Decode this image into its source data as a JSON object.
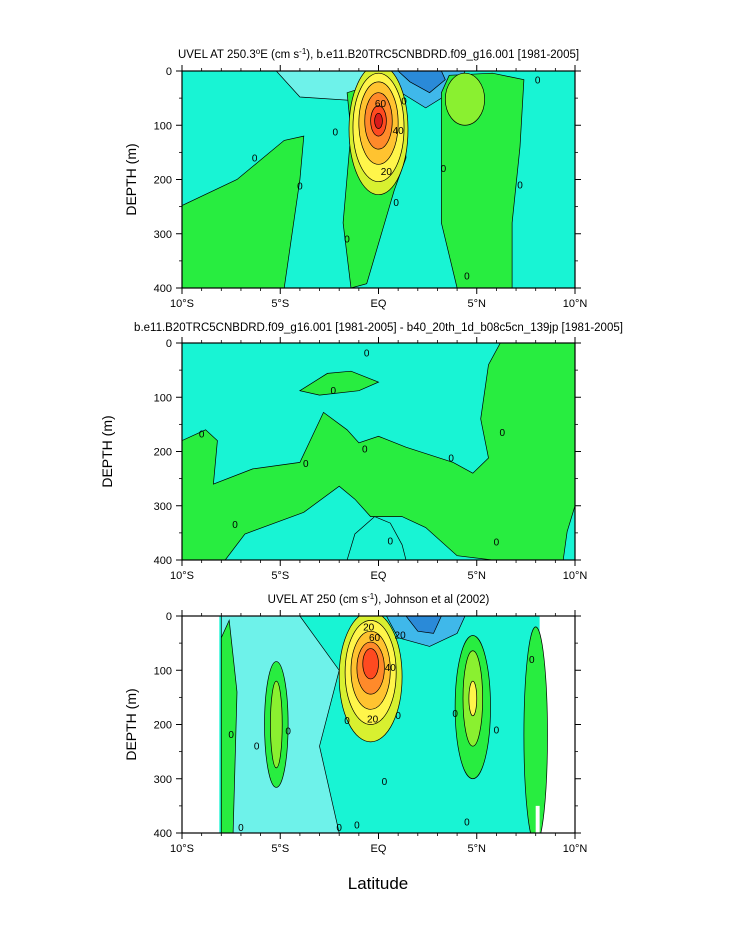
{
  "figure": {
    "shared_xlabel": "Latitude"
  },
  "colors": {
    "cyan": "#6ef2ea",
    "aqua": "#18f4d4",
    "green": "#28ed40",
    "lightgreen": "#8af030",
    "yellowgreen": "#d8f030",
    "yellow": "#fff54a",
    "orange": "#ffc330",
    "red": "#ff4a20",
    "darkred": "#d81a1a",
    "blue": "#2a8ad8",
    "midblue": "#3fb8ea",
    "line": "#000000"
  },
  "chart_data": [
    {
      "type": "contour",
      "title_parts": [
        "UVEL AT 250.3",
        "o",
        "E (cm s",
        "-1",
        "), b.e11.B20TRC5CNBDRD.f09_g16.001 [1981-2005]"
      ],
      "ylabel": "DEPTH (m)",
      "xlim": [
        -10,
        10
      ],
      "ylim": [
        400,
        0
      ],
      "xticks": [
        -10,
        -5,
        0,
        5,
        10
      ],
      "xtick_labels": [
        "10°S",
        "5°S",
        "EQ",
        "5°N",
        "10°N"
      ],
      "yticks": [
        0,
        100,
        200,
        300,
        400
      ],
      "ytick_labels": [
        "0",
        "100",
        "200",
        "300",
        "400"
      ],
      "contour_labels": [
        {
          "text": "60",
          "x": 0.1,
          "y": 60
        },
        {
          "text": "40",
          "x": 1.0,
          "y": 110
        },
        {
          "text": "20",
          "x": 0.4,
          "y": 185
        },
        {
          "text": "0",
          "x": 1.3,
          "y": 55
        },
        {
          "text": "0",
          "x": -6.3,
          "y": 160
        },
        {
          "text": "0",
          "x": -4.0,
          "y": 212
        },
        {
          "text": "0",
          "x": -2.2,
          "y": 112
        },
        {
          "text": "0",
          "x": -1.6,
          "y": 310
        },
        {
          "text": "0",
          "x": 0.9,
          "y": 242
        },
        {
          "text": "0",
          "x": 3.3,
          "y": 180
        },
        {
          "text": "0",
          "x": 4.5,
          "y": 378
        },
        {
          "text": "0",
          "x": 7.2,
          "y": 210
        },
        {
          "text": "0",
          "x": 8.1,
          "y": 17
        }
      ]
    },
    {
      "type": "contour",
      "title_parts": [
        "b.e11.B20TRC5CNBDRD.f09_g16.001 [1981-2005] - b40_20th_1d_b08c5cn_139jp [1981-2005]"
      ],
      "ylabel": "DEPTH (m)",
      "xlim": [
        -10,
        10
      ],
      "ylim": [
        400,
        0
      ],
      "xticks": [
        -10,
        -5,
        0,
        5,
        10
      ],
      "xtick_labels": [
        "10°S",
        "5°S",
        "EQ",
        "5°N",
        "10°N"
      ],
      "yticks": [
        0,
        100,
        200,
        300,
        400
      ],
      "ytick_labels": [
        "0",
        "100",
        "200",
        "300",
        "400"
      ],
      "contour_labels": [
        {
          "text": "0",
          "x": -0.6,
          "y": 18
        },
        {
          "text": "0",
          "x": -2.3,
          "y": 88
        },
        {
          "text": "0",
          "x": -9.0,
          "y": 168
        },
        {
          "text": "0",
          "x": -3.7,
          "y": 222
        },
        {
          "text": "0",
          "x": -0.7,
          "y": 195
        },
        {
          "text": "0",
          "x": 3.7,
          "y": 212
        },
        {
          "text": "0",
          "x": 6.3,
          "y": 165
        },
        {
          "text": "0",
          "x": -7.3,
          "y": 335
        },
        {
          "text": "0",
          "x": 0.6,
          "y": 365
        },
        {
          "text": "0",
          "x": 6.0,
          "y": 367
        }
      ]
    },
    {
      "type": "contour",
      "title_parts": [
        "UVEL AT 250 (cm s",
        "-1",
        "), Johnson et al (2002)"
      ],
      "ylabel": "DEPTH (m)",
      "xlabel": "Latitude",
      "xlim": [
        -10,
        10
      ],
      "ylim": [
        400,
        0
      ],
      "xticks": [
        -10,
        -5,
        0,
        5,
        10
      ],
      "xtick_labels": [
        "10°S",
        "5°S",
        "EQ",
        "5°N",
        "10°N"
      ],
      "yticks": [
        0,
        100,
        200,
        300,
        400
      ],
      "ytick_labels": [
        "0",
        "100",
        "200",
        "300",
        "400"
      ],
      "contour_labels": [
        {
          "text": "60",
          "x": -0.2,
          "y": 40
        },
        {
          "text": "20",
          "x": -0.5,
          "y": 20
        },
        {
          "text": "20",
          "x": 1.1,
          "y": 35
        },
        {
          "text": "40",
          "x": 0.6,
          "y": 95
        },
        {
          "text": "20",
          "x": -0.3,
          "y": 190
        },
        {
          "text": "0",
          "x": -7.5,
          "y": 218
        },
        {
          "text": "0",
          "x": -6.2,
          "y": 240
        },
        {
          "text": "0",
          "x": -4.6,
          "y": 212
        },
        {
          "text": "0",
          "x": -1.6,
          "y": 193
        },
        {
          "text": "0",
          "x": 1.0,
          "y": 183
        },
        {
          "text": "0",
          "x": 0.3,
          "y": 305
        },
        {
          "text": "0",
          "x": -1.1,
          "y": 385
        },
        {
          "text": "0",
          "x": -2.0,
          "y": 390
        },
        {
          "text": "0",
          "x": 3.9,
          "y": 180
        },
        {
          "text": "0",
          "x": 6.0,
          "y": 210
        },
        {
          "text": "0",
          "x": 7.8,
          "y": 80
        },
        {
          "text": "0",
          "x": 4.5,
          "y": 380
        },
        {
          "text": "0",
          "x": -7.0,
          "y": 390
        }
      ]
    }
  ]
}
